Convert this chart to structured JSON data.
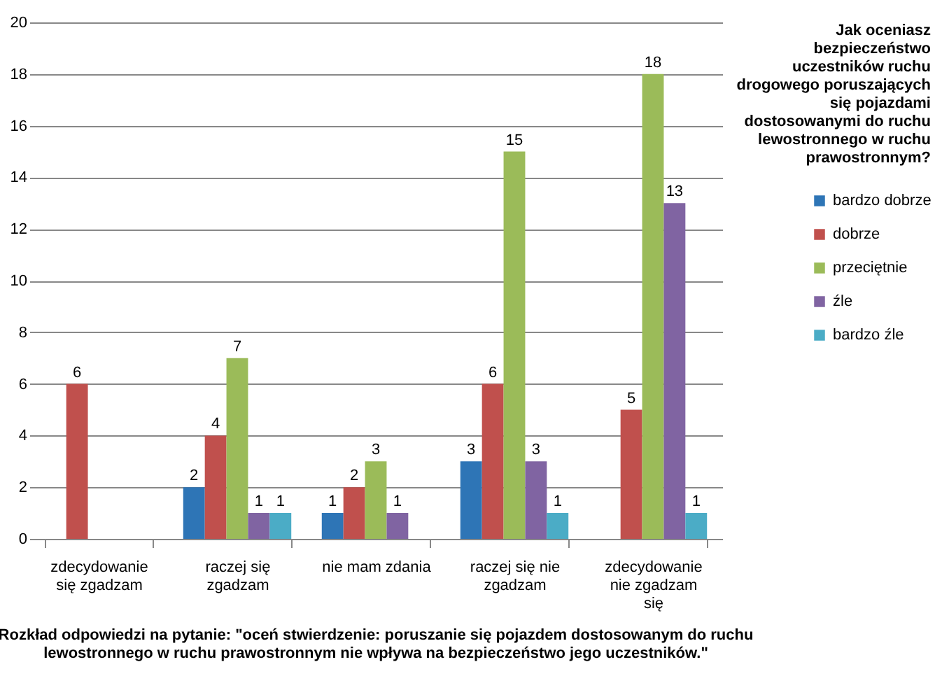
{
  "chart_data": {
    "type": "bar",
    "categories": [
      "zdecydowanie się zgadzam",
      "raczej się zgadzam",
      "nie mam zdania",
      "raczej się nie zgadzam",
      "zdecydowanie nie zgadzam się"
    ],
    "series": [
      {
        "name": "bardzo dobrze",
        "color": "#2e75b6",
        "values": [
          null,
          2,
          1,
          3,
          null
        ]
      },
      {
        "name": "dobrze",
        "color": "#c0504d",
        "values": [
          6,
          4,
          2,
          6,
          5
        ]
      },
      {
        "name": "przeciętnie",
        "color": "#9bbb59",
        "values": [
          null,
          7,
          3,
          15,
          18
        ]
      },
      {
        "name": "źle",
        "color": "#8064a2",
        "values": [
          null,
          1,
          1,
          3,
          13
        ]
      },
      {
        "name": "bardzo źle",
        "color": "#4bacc6",
        "values": [
          null,
          1,
          null,
          1,
          1
        ]
      }
    ],
    "ylim": [
      0,
      20
    ],
    "yticks": [
      0,
      2,
      4,
      6,
      8,
      10,
      12,
      14,
      16,
      18,
      20
    ],
    "grid": "y",
    "legend": "right",
    "data_labels": true,
    "legend_title": "Jak oceniasz bezpieczeństwo uczestników ruchu drogowego poruszających się pojazdami dostosowanymi do ruchu lewostronnego w ruchu prawostronnym?",
    "annotations": [
      "Rozkład odpowiedzi na pytanie: \"oceń stwierdzenie: poruszanie się pojazdem dostosowanym do ruchu lewostronnego w ruchu prawostronnym  nie wpływa na bezpieczeństwo jego uczestników.\""
    ]
  }
}
